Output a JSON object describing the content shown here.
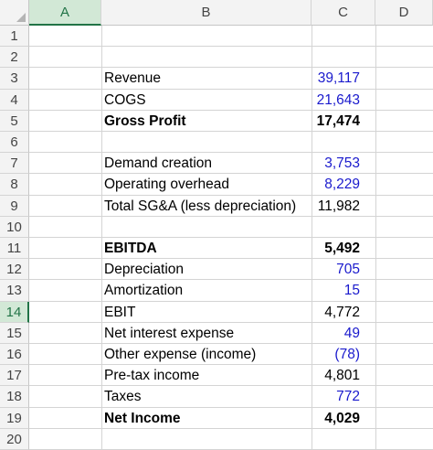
{
  "columns": [
    "A",
    "B",
    "C",
    "D"
  ],
  "selected_column": "A",
  "selected_row": 14,
  "rows": [
    {
      "n": "1",
      "label": "",
      "value": "",
      "bold": false,
      "blue": false
    },
    {
      "n": "2",
      "label": "",
      "value": "",
      "bold": false,
      "blue": false
    },
    {
      "n": "3",
      "label": "Revenue",
      "value": "39,117",
      "bold": false,
      "blue": true
    },
    {
      "n": "4",
      "label": "COGS",
      "value": "21,643",
      "bold": false,
      "blue": true
    },
    {
      "n": "5",
      "label": "Gross Profit",
      "value": "17,474",
      "bold": true,
      "blue": false
    },
    {
      "n": "6",
      "label": "",
      "value": "",
      "bold": false,
      "blue": false
    },
    {
      "n": "7",
      "label": "Demand creation",
      "value": "3,753",
      "bold": false,
      "blue": true
    },
    {
      "n": "8",
      "label": "Operating overhead",
      "value": "8,229",
      "bold": false,
      "blue": true
    },
    {
      "n": "9",
      "label": "Total SG&A (less depreciation)",
      "value": "11,982",
      "bold": false,
      "blue": false
    },
    {
      "n": "10",
      "label": "",
      "value": "",
      "bold": false,
      "blue": false
    },
    {
      "n": "11",
      "label": "EBITDA",
      "value": "5,492",
      "bold": true,
      "blue": false
    },
    {
      "n": "12",
      "label": "Depreciation",
      "value": "705",
      "bold": false,
      "blue": true
    },
    {
      "n": "13",
      "label": "Amortization",
      "value": "15",
      "bold": false,
      "blue": true
    },
    {
      "n": "14",
      "label": "EBIT",
      "value": "4,772",
      "bold": false,
      "blue": false
    },
    {
      "n": "15",
      "label": "Net interest expense",
      "value": "49",
      "bold": false,
      "blue": true
    },
    {
      "n": "16",
      "label": "Other expense (income)",
      "value": "(78)",
      "bold": false,
      "blue": true
    },
    {
      "n": "17",
      "label": "Pre-tax income",
      "value": "4,801",
      "bold": false,
      "blue": false
    },
    {
      "n": "18",
      "label": "Taxes",
      "value": "772",
      "bold": false,
      "blue": true
    },
    {
      "n": "19",
      "label": "Net Income",
      "value": "4,029",
      "bold": true,
      "blue": false
    },
    {
      "n": "20",
      "label": "",
      "value": "",
      "bold": false,
      "blue": false
    }
  ]
}
